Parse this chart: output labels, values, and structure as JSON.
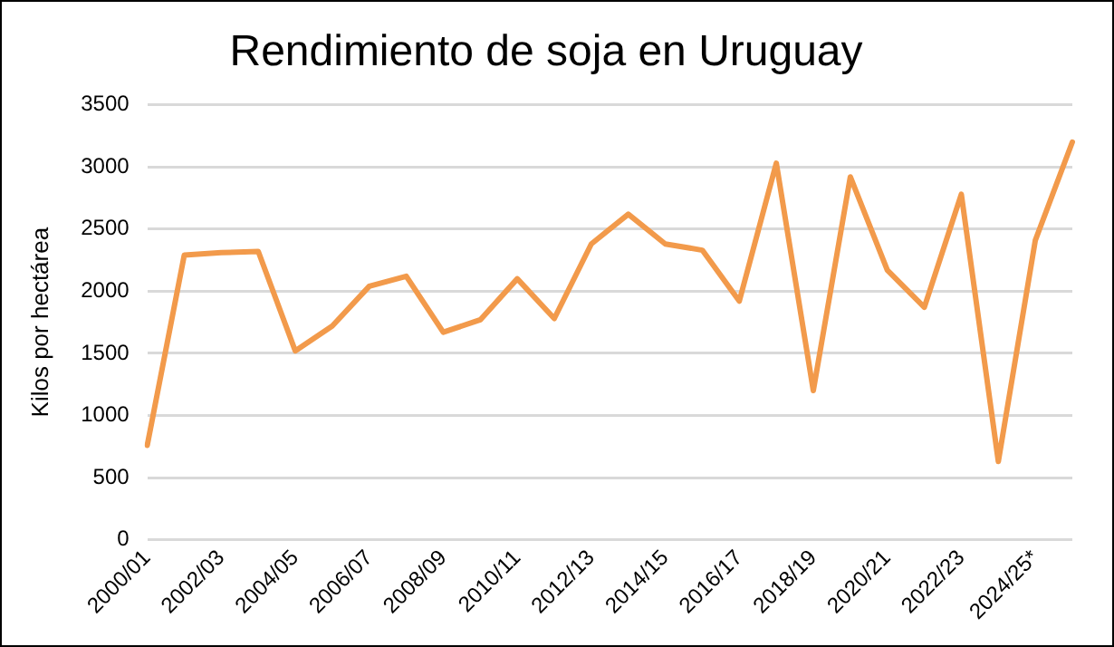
{
  "chart_data": {
    "type": "line",
    "title": "Rendimiento de soja en Uruguay",
    "ylabel": "Kilos por hectárea",
    "categories": [
      "2000/01",
      null,
      "2002/03",
      null,
      "2004/05",
      null,
      "2006/07",
      null,
      "2008/09",
      null,
      "2010/11",
      null,
      "2012/13",
      null,
      "2014/15",
      null,
      "2016/17",
      null,
      "2018/19",
      null,
      "2020/21",
      null,
      "2022/23",
      null,
      "2024/25*",
      null
    ],
    "series": [
      {
        "color": "#f29a4b",
        "values": [
          760,
          2290,
          2310,
          2320,
          1520,
          1720,
          2040,
          2120,
          1670,
          1770,
          2100,
          1780,
          2380,
          2620,
          2380,
          2330,
          1920,
          3030,
          1200,
          2920,
          2170,
          1870,
          2780,
          630,
          2410,
          3200
        ]
      }
    ],
    "ylim": [
      0,
      3500
    ],
    "yticks": [
      0,
      500,
      1000,
      1500,
      2000,
      2500,
      3000,
      3500
    ],
    "grid": "y",
    "legend": false,
    "marker": "none",
    "line_style": "solid"
  }
}
